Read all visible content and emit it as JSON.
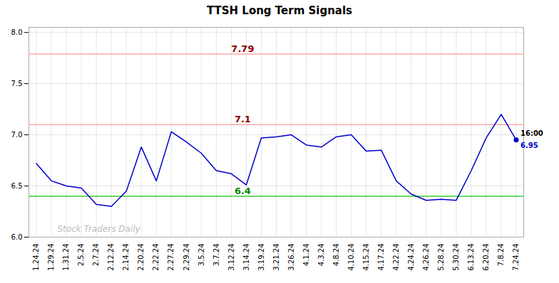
{
  "chart_data": {
    "type": "line",
    "title": "TTSH Long Term Signals",
    "categories": [
      "1.24.24",
      "1.29.24",
      "1.31.24",
      "2.5.24",
      "2.7.24",
      "2.12.24",
      "2.14.24",
      "2.20.24",
      "2.22.24",
      "2.27.24",
      "2.29.24",
      "3.5.24",
      "3.7.24",
      "3.12.24",
      "3.14.24",
      "3.19.24",
      "3.21.24",
      "3.26.24",
      "4.1.24",
      "4.3.24",
      "4.8.24",
      "4.10.24",
      "4.15.24",
      "4.17.24",
      "4.22.24",
      "4.24.24",
      "4.26.24",
      "5.28.24",
      "5.30.24",
      "6.13.24",
      "6.20.24",
      "7.8.24",
      "7.24.24"
    ],
    "values": [
      6.72,
      6.55,
      6.5,
      6.48,
      6.32,
      6.3,
      6.45,
      6.88,
      6.55,
      7.03,
      6.93,
      6.82,
      6.65,
      6.62,
      6.51,
      6.97,
      6.98,
      7.0,
      6.9,
      6.88,
      6.98,
      7.0,
      6.84,
      6.85,
      6.55,
      6.42,
      6.36,
      6.37,
      6.36,
      6.65,
      6.97,
      7.2,
      6.95
    ],
    "color": "#0000cc",
    "hlines": [
      {
        "value": 7.79,
        "label": "7.79",
        "color": "#ffaaaa",
        "label_color": "#8b0000"
      },
      {
        "value": 7.1,
        "label": "7.1",
        "color": "#ffaaaa",
        "label_color": "#8b0000"
      },
      {
        "value": 6.4,
        "label": "6.4",
        "color": "#33cc33",
        "label_color": "#008800"
      }
    ],
    "last_point": {
      "time": "16:00",
      "label": "6.95",
      "color": "#0000cc"
    },
    "watermark": {
      "text": "Stock Traders Daily",
      "color": "#bbbbbb"
    },
    "ylim": [
      6.0,
      8.05
    ],
    "yticks": [
      {
        "value": 6.0,
        "label": "6.0"
      },
      6.5,
      {
        "value": 7.0,
        "label": "7.0"
      },
      7.5,
      {
        "value": 8.0,
        "label": "8.0"
      }
    ],
    "grid": true
  }
}
